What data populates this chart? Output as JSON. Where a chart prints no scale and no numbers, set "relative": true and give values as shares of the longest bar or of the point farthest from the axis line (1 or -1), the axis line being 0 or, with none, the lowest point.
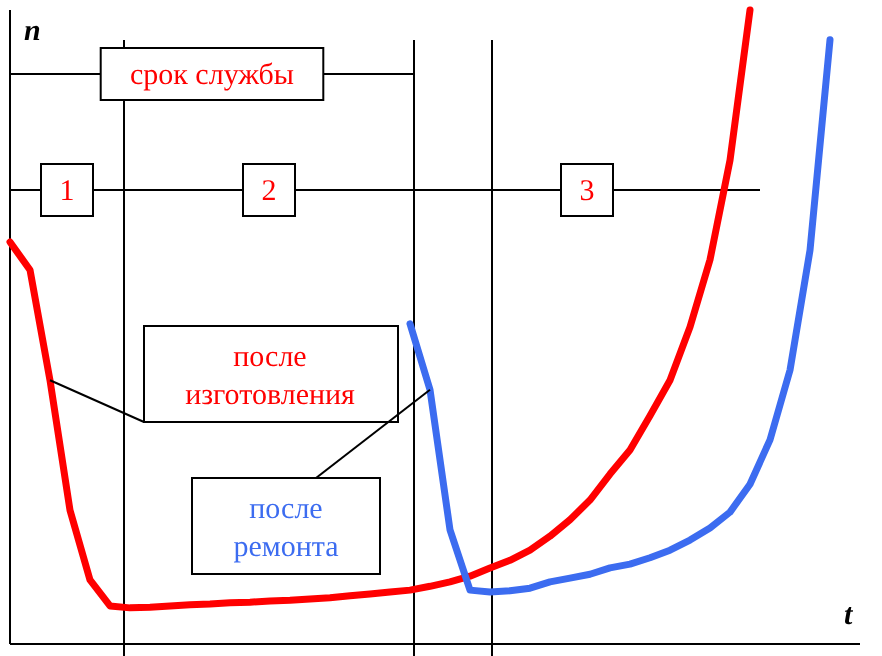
{
  "chart_data": {
    "type": "line",
    "relative": true,
    "xlabel": "t",
    "ylabel": "n",
    "categories": [
      null,
      null,
      null,
      null,
      null,
      null,
      null,
      null,
      null,
      null,
      null,
      null,
      null,
      null,
      null,
      null,
      null,
      null,
      null,
      null,
      null,
      null,
      null,
      null,
      null,
      null,
      null,
      null,
      null,
      null,
      null,
      null,
      null,
      null,
      null,
      null,
      null,
      null,
      null,
      null,
      null,
      null,
      null
    ],
    "series": [
      {
        "name": "после изготовления",
        "color": "#ff0000",
        "values": [
          0.634,
          0.59,
          0.416,
          0.211,
          0.101,
          0.06,
          0.057,
          0.058,
          0.06,
          0.062,
          0.063,
          0.065,
          0.066,
          0.068,
          0.069,
          0.071,
          0.073,
          0.076,
          0.079,
          0.082,
          0.085,
          0.091,
          0.098,
          0.107,
          0.12,
          0.132,
          0.148,
          0.17,
          0.196,
          0.227,
          0.268,
          0.306,
          0.36,
          0.416,
          0.5,
          0.606,
          0.763,
          1,
          null,
          null,
          null,
          null,
          null
        ]
      },
      {
        "name": "после ремонта",
        "color": "#3c6cf0",
        "values": [
          null,
          null,
          null,
          null,
          null,
          null,
          null,
          null,
          null,
          null,
          null,
          null,
          null,
          null,
          null,
          null,
          null,
          null,
          null,
          null,
          0.505,
          0.401,
          0.18,
          0.085,
          0.082,
          0.084,
          0.088,
          0.098,
          0.104,
          0.11,
          0.12,
          0.126,
          0.136,
          0.148,
          0.164,
          0.183,
          0.208,
          0.252,
          0.322,
          0.432,
          0.621,
          0.953,
          null
        ]
      }
    ],
    "annotations": [
      "срок службы",
      "1",
      "2",
      "3"
    ]
  }
}
